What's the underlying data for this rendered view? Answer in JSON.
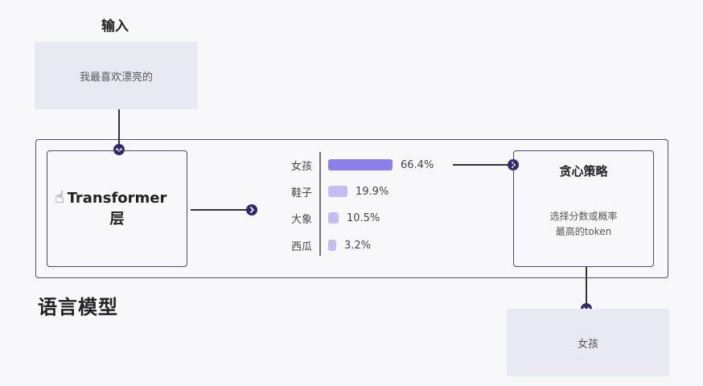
{
  "input": {
    "title": "输入",
    "text": "我最喜欢漂亮的"
  },
  "transformer": {
    "line1": "Transformer",
    "line2": "层"
  },
  "language_model": {
    "label": "语言模型"
  },
  "greedy": {
    "title": "贪心策略",
    "desc_line1": "选择分数或概率",
    "desc_line2": "最高的token"
  },
  "output": {
    "text": "女孩"
  },
  "probs": [
    {
      "word": "女孩",
      "value": 66.4,
      "label": "66.4%",
      "color": "#8b7fe8"
    },
    {
      "word": "鞋子",
      "value": 19.9,
      "label": "19.9%",
      "color": "#c4bdf3"
    },
    {
      "word": "大象",
      "value": 10.5,
      "label": "10.5%",
      "color": "#c4bdf3"
    },
    {
      "word": "西瓜",
      "value": 3.2,
      "label": "3.2%",
      "color": "#c4bdf3"
    }
  ],
  "colors": {
    "line": "#333333",
    "node": "#2e2a6e",
    "box_border": "#4a4a6e"
  }
}
